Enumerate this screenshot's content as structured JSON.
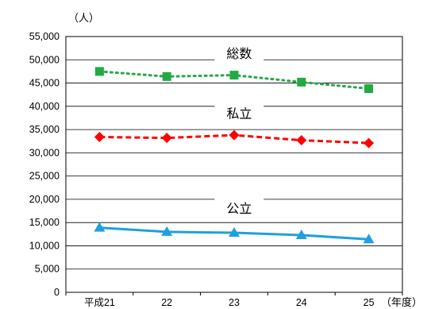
{
  "chart_data": {
    "type": "line",
    "categories": [
      "平成21",
      "22",
      "23",
      "24",
      "25"
    ],
    "y_unit_label": "（人）",
    "x_unit_label": "（年度）",
    "ylim": [
      0,
      55000
    ],
    "ytick_step": 5000,
    "ytick_labels": [
      "0",
      "5,000",
      "10,000",
      "15,000",
      "20,000",
      "25,000",
      "30,000",
      "35,000",
      "40,000",
      "45,000",
      "50,000",
      "55,000"
    ],
    "grid": true,
    "series": [
      {
        "name": "総数",
        "values": [
          47500,
          46400,
          46700,
          45200,
          43800
        ],
        "color": "#22aa44",
        "marker": "square",
        "line": "dotted"
      },
      {
        "name": "私立",
        "values": [
          33400,
          33200,
          33800,
          32700,
          32100
        ],
        "color": "#ff0000",
        "marker": "diamond",
        "line": "dashed"
      },
      {
        "name": "公立",
        "values": [
          13900,
          13000,
          12800,
          12300,
          11400
        ],
        "color": "#1fa0dd",
        "marker": "triangle",
        "line": "solid"
      }
    ]
  }
}
